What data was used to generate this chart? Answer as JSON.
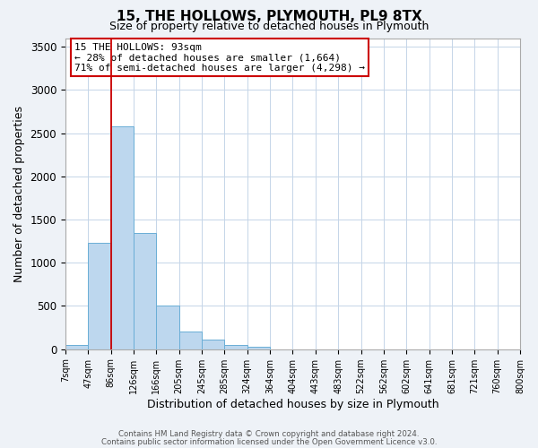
{
  "title": "15, THE HOLLOWS, PLYMOUTH, PL9 8TX",
  "subtitle": "Size of property relative to detached houses in Plymouth",
  "xlabel": "Distribution of detached houses by size in Plymouth",
  "ylabel": "Number of detached properties",
  "bar_values": [
    50,
    1230,
    2580,
    1340,
    500,
    205,
    110,
    50,
    30,
    0,
    0,
    0,
    0,
    0,
    0,
    0,
    0,
    0,
    0,
    0
  ],
  "bar_labels": [
    "7sqm",
    "47sqm",
    "86sqm",
    "126sqm",
    "166sqm",
    "205sqm",
    "245sqm",
    "285sqm",
    "324sqm",
    "364sqm",
    "404sqm",
    "443sqm",
    "483sqm",
    "522sqm",
    "562sqm",
    "602sqm",
    "641sqm",
    "681sqm",
    "721sqm",
    "760sqm",
    "800sqm"
  ],
  "bar_color": "#bdd7ee",
  "bar_edgecolor": "#6aaed6",
  "vline_x": 2.0,
  "vline_color": "#cc0000",
  "ylim": [
    0,
    3600
  ],
  "yticks": [
    0,
    500,
    1000,
    1500,
    2000,
    2500,
    3000,
    3500
  ],
  "annotation_title": "15 THE HOLLOWS: 93sqm",
  "annotation_line2": "← 28% of detached houses are smaller (1,664)",
  "annotation_line3": "71% of semi-detached houses are larger (4,298) →",
  "annotation_box_color": "#cc0000",
  "footer1": "Contains HM Land Registry data © Crown copyright and database right 2024.",
  "footer2": "Contains public sector information licensed under the Open Government Licence v3.0.",
  "bg_color": "#eef2f7",
  "plot_bg_color": "#ffffff",
  "grid_color": "#c5d5e8"
}
